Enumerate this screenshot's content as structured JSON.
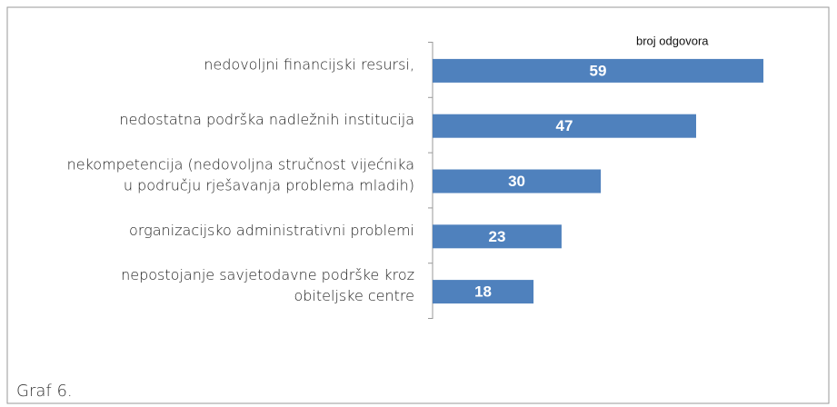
{
  "chart_data": {
    "type": "bar",
    "orientation": "horizontal",
    "categories": [
      [
        "nedovoljni financijski resursi,"
      ],
      [
        "nedostatna podrška nadležnih institucija"
      ],
      [
        "nekompetencija (nedovoljna stručnost vijećnika",
        "u području rješavanja problema mladih)"
      ],
      [
        "organizacijsko administrativni problemi"
      ],
      [
        "nepostojanje savjetodavne podrške kroz",
        "obiteljske centre"
      ]
    ],
    "series": [
      {
        "name": "broj odgovora",
        "color": "#4f81bd",
        "values": [
          59,
          47,
          30,
          23,
          18
        ]
      }
    ],
    "caption": "Graf 6."
  }
}
